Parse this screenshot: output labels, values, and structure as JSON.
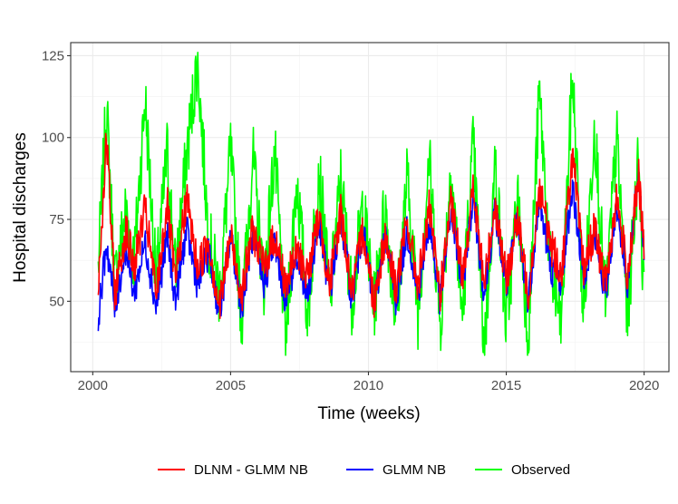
{
  "chart_data": {
    "type": "line",
    "xlabel": "Time (weeks)",
    "ylabel": "Hospital discharges",
    "xlim": [
      1999.2,
      2020.9
    ],
    "ylim": [
      28.5,
      129
    ],
    "x_ticks": [
      2000,
      2005,
      2010,
      2015,
      2020
    ],
    "x_tick_labels": [
      "2000",
      "2005",
      "2010",
      "2015",
      "2020"
    ],
    "y_ticks": [
      50,
      75,
      100,
      125
    ],
    "y_tick_labels": [
      "50",
      "75",
      "100",
      "125"
    ],
    "grid": true,
    "legend_position": "bottom",
    "x_step_weeks": 0.0192,
    "series": [
      {
        "name": "DLNM - GLMM NB",
        "color": "#ff0000",
        "x": [
          2000.2,
          2000.5,
          2000.8,
          2001.2,
          2001.5,
          2001.9,
          2002.3,
          2002.7,
          2003.0,
          2003.4,
          2003.8,
          2004.2,
          2004.6,
          2005.0,
          2005.4,
          2005.8,
          2006.2,
          2006.6,
          2007.0,
          2007.4,
          2007.8,
          2008.2,
          2008.6,
          2009.0,
          2009.4,
          2009.8,
          2010.2,
          2010.6,
          2011.0,
          2011.4,
          2011.8,
          2012.2,
          2012.6,
          2013.0,
          2013.4,
          2013.8,
          2014.2,
          2014.6,
          2015.0,
          2015.4,
          2015.8,
          2016.2,
          2016.6,
          2017.0,
          2017.4,
          2017.8,
          2018.2,
          2018.6,
          2019.0,
          2019.4,
          2019.8,
          2020.0
        ],
        "values": [
          55,
          100,
          52,
          72,
          60,
          78,
          52,
          80,
          55,
          82,
          60,
          68,
          48,
          70,
          52,
          72,
          60,
          70,
          55,
          65,
          58,
          76,
          55,
          78,
          52,
          72,
          50,
          70,
          54,
          74,
          55,
          78,
          52,
          80,
          58,
          84,
          55,
          80,
          56,
          75,
          52,
          85,
          68,
          58,
          95,
          60,
          72,
          55,
          82,
          58,
          88,
          65
        ]
      },
      {
        "name": "GLMM NB",
        "color": "#0000ff",
        "x": [
          2000.2,
          2000.5,
          2000.8,
          2001.2,
          2001.5,
          2001.9,
          2002.3,
          2002.7,
          2003.0,
          2003.4,
          2003.8,
          2004.2,
          2004.6,
          2005.0,
          2005.4,
          2005.8,
          2006.2,
          2006.6,
          2007.0,
          2007.4,
          2007.8,
          2008.2,
          2008.6,
          2009.0,
          2009.4,
          2009.8,
          2010.2,
          2010.6,
          2011.0,
          2011.4,
          2011.8,
          2012.2,
          2012.6,
          2013.0,
          2013.4,
          2013.8,
          2014.2,
          2014.6,
          2015.0,
          2015.4,
          2015.8,
          2016.2,
          2016.6,
          2017.0,
          2017.4,
          2017.8,
          2018.2,
          2018.6,
          2019.0,
          2019.4,
          2019.8,
          2020.0
        ],
        "values": [
          45,
          68,
          48,
          66,
          52,
          68,
          48,
          70,
          50,
          72,
          55,
          65,
          46,
          70,
          48,
          70,
          55,
          68,
          50,
          64,
          52,
          74,
          52,
          76,
          50,
          72,
          48,
          70,
          50,
          72,
          52,
          74,
          50,
          78,
          54,
          82,
          52,
          78,
          54,
          74,
          50,
          82,
          60,
          56,
          85,
          58,
          70,
          52,
          80,
          55,
          90,
          64
        ]
      },
      {
        "name": "Observed",
        "color": "#00ff00",
        "x": [
          2000.2,
          2000.5,
          2000.8,
          2001.2,
          2001.5,
          2001.9,
          2002.3,
          2002.7,
          2003.0,
          2003.4,
          2003.8,
          2004.2,
          2004.6,
          2005.0,
          2005.4,
          2005.8,
          2006.2,
          2006.6,
          2007.0,
          2007.4,
          2007.8,
          2008.2,
          2008.6,
          2009.0,
          2009.4,
          2009.8,
          2010.2,
          2010.6,
          2011.0,
          2011.4,
          2011.8,
          2012.2,
          2012.6,
          2013.0,
          2013.4,
          2013.8,
          2014.2,
          2014.6,
          2015.0,
          2015.4,
          2015.8,
          2016.2,
          2016.6,
          2017.0,
          2017.4,
          2017.8,
          2018.2,
          2018.6,
          2019.0,
          2019.4,
          2019.8,
          2020.0
        ],
        "values": [
          60,
          110,
          55,
          78,
          62,
          112,
          55,
          96,
          58,
          94,
          124,
          70,
          52,
          96,
          44,
          95,
          55,
          96,
          38,
          88,
          45,
          92,
          50,
          88,
          50,
          80,
          48,
          80,
          44,
          88,
          46,
          94,
          42,
          92,
          45,
          98,
          35,
          92,
          42,
          82,
          40,
          114,
          60,
          42,
          120,
          45,
          105,
          48,
          100,
          45,
          95,
          48
        ]
      }
    ]
  }
}
